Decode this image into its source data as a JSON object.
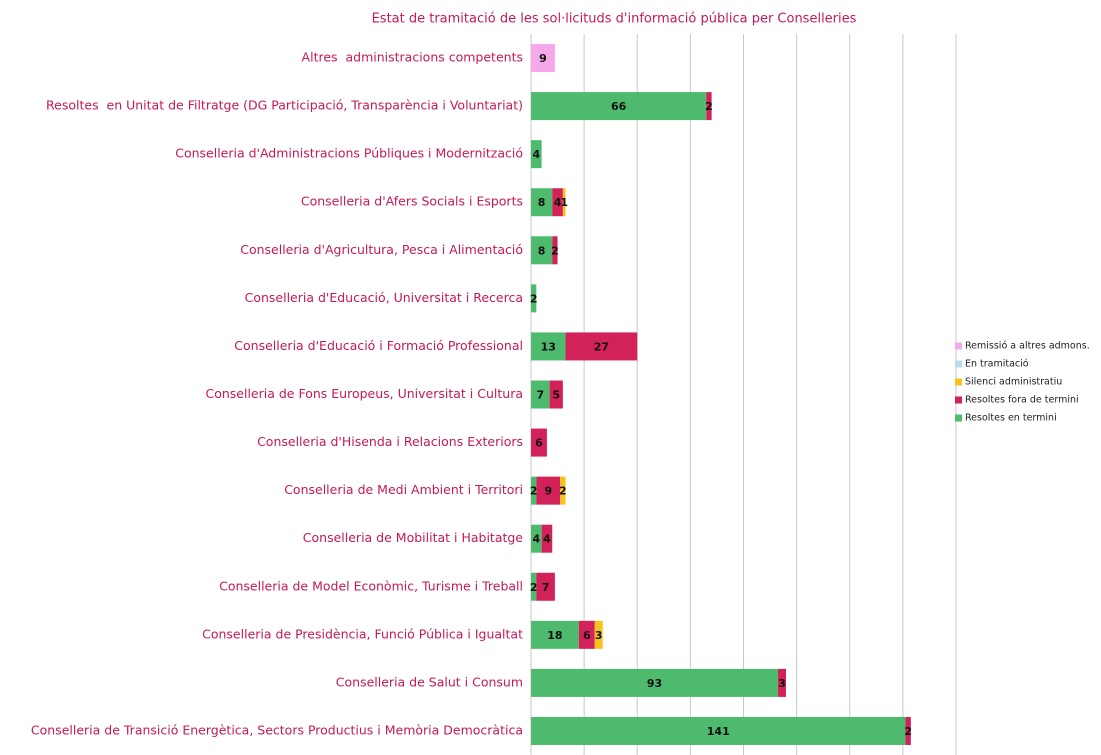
{
  "chart_data": {
    "type": "stacked-bar-horizontal",
    "title": "Estat de tramitació de les sol·licituds d'informació pública per Conselleries",
    "categories": [
      "Altres  administracions competents",
      "Resoltes  en Unitat de Filtratge (DG Participació, Transparència i Voluntariat)",
      "Conselleria d'Administracions Públiques i Modernització",
      "Conselleria d'Afers Socials i Esports",
      "Conselleria d'Agricultura, Pesca i Alimentació",
      "Conselleria d'Educació, Universitat i Recerca",
      "Conselleria d'Educació i Formació Professional",
      "Conselleria de Fons Europeus, Universitat i Cultura",
      "Conselleria d'Hisenda i Relacions Exteriors",
      "Conselleria de Medi Ambient i Territori",
      "Conselleria de Mobilitat i Habitatge",
      "Conselleria de Model Econòmic, Turisme i Treball",
      "Conselleria de Presidència, Funció Pública i Igualtat",
      "Conselleria de Salut i Consum",
      "Conselleria de Transició Energètica, Sectors Productius i Memòria Democràtica"
    ],
    "series": [
      {
        "name": "Resoltes en termini",
        "color": "#4dba6e",
        "values": [
          null,
          66,
          4,
          8,
          8,
          2,
          13,
          7,
          null,
          2,
          4,
          2,
          18,
          93,
          141
        ]
      },
      {
        "name": "Resoltes fora de termini",
        "color": "#d32259",
        "values": [
          null,
          2,
          null,
          4,
          2,
          null,
          27,
          5,
          6,
          9,
          4,
          7,
          6,
          3,
          2
        ]
      },
      {
        "name": "Silenci administratiu",
        "color": "#f7c31c",
        "values": [
          null,
          null,
          null,
          1,
          null,
          null,
          null,
          null,
          null,
          2,
          null,
          null,
          3,
          null,
          null
        ]
      },
      {
        "name": "En tramitació",
        "color": "#b9dde8",
        "values": [
          null,
          null,
          null,
          null,
          null,
          null,
          null,
          null,
          null,
          null,
          null,
          null,
          null,
          null,
          null
        ]
      },
      {
        "name": "Remissió a altres admons.",
        "color": "#f5a8ea",
        "values": [
          9,
          null,
          null,
          null,
          null,
          null,
          null,
          null,
          null,
          null,
          null,
          null,
          null,
          null,
          null
        ]
      }
    ],
    "xlim": [
      0,
      160
    ],
    "xticks": [
      0,
      20,
      40,
      60,
      80,
      100,
      120,
      140,
      160
    ],
    "grid": true,
    "legend": "right"
  }
}
